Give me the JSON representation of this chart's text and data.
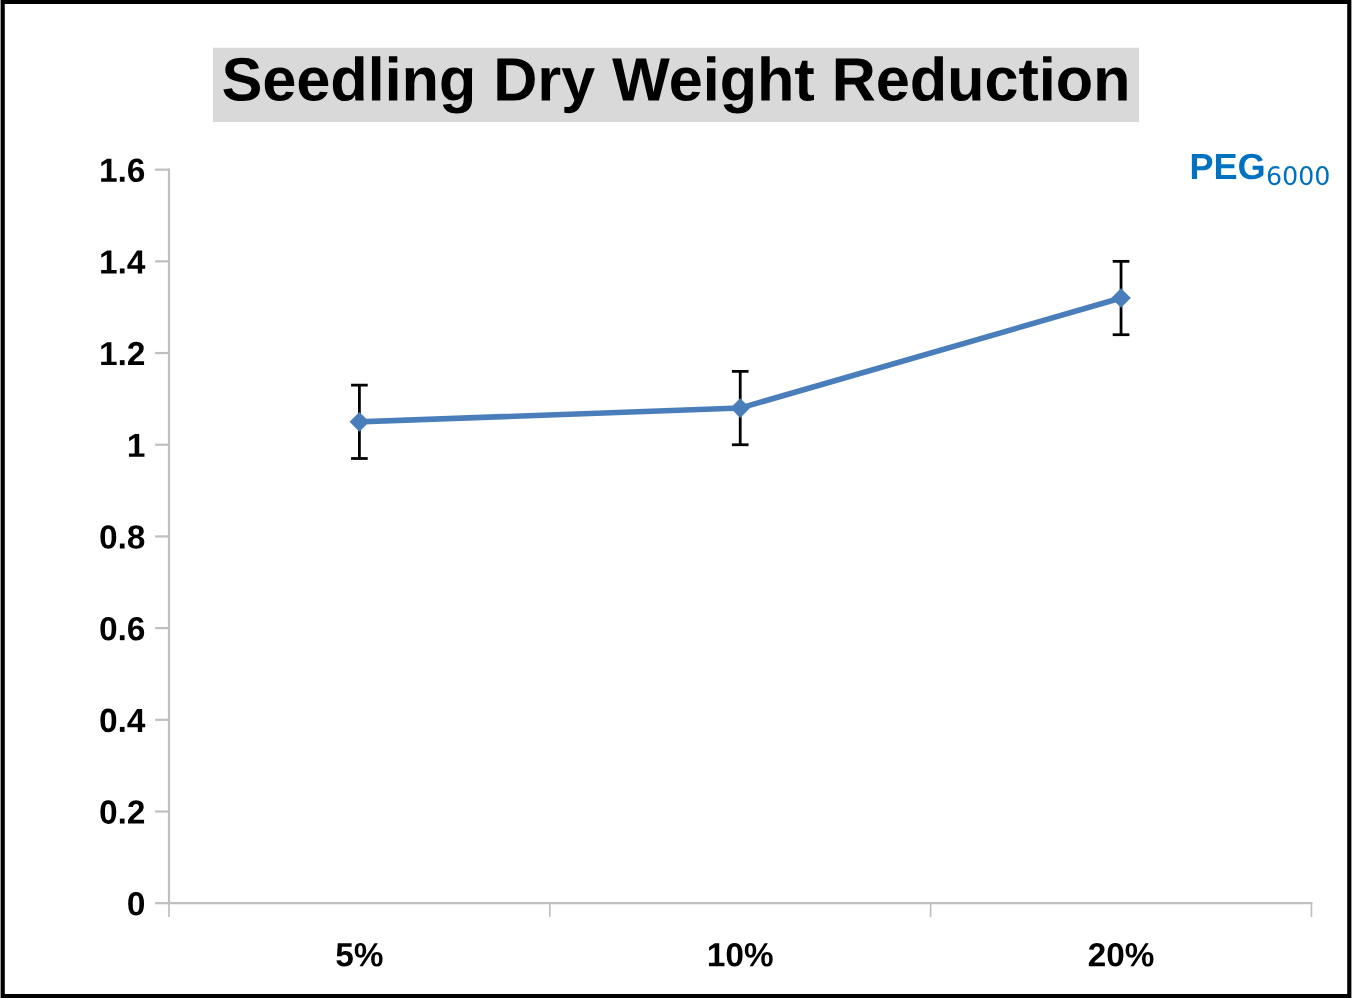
{
  "chart_data": {
    "type": "line",
    "title": "Seedling Dry Weight Reduction",
    "categories": [
      "5%",
      "10%",
      "20%"
    ],
    "series": [
      {
        "color": "#4a7ebb",
        "values": [
          1.05,
          1.08,
          1.32
        ],
        "errors": [
          0.08,
          0.08,
          0.08
        ]
      }
    ],
    "ylim": [
      0,
      1.6
    ],
    "yticks": [
      0,
      0.2,
      0.4,
      0.6,
      0.8,
      1,
      1.2,
      1.4,
      1.6
    ],
    "annotations": [
      "PEG$_{6000}$"
    ],
    "grid": false,
    "legend": false,
    "marker": "diamond",
    "line_style": "solid"
  }
}
